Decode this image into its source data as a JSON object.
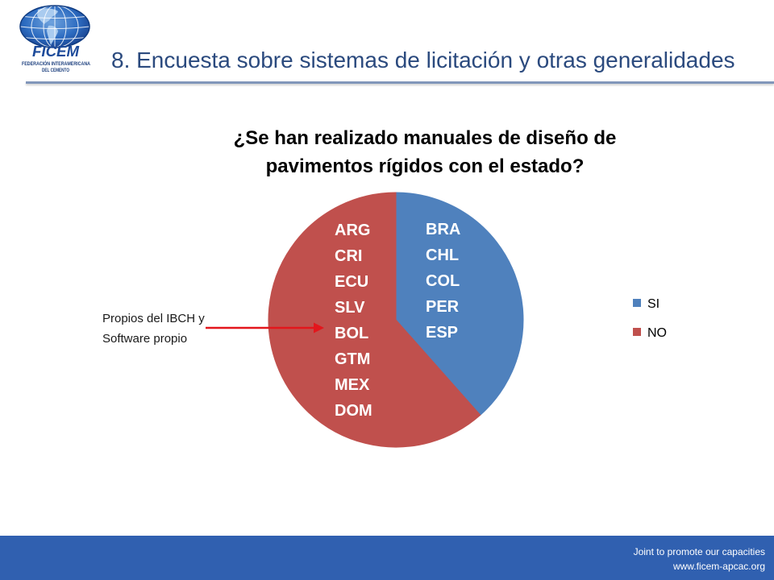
{
  "logo": {
    "name": "FICEM",
    "line1": "FEDERACIÓN INTERAMERICANA",
    "line2": "DEL CEMENTO"
  },
  "slide": {
    "title": "8. Encuesta sobre sistemas de licitación y otras generalidades"
  },
  "footer": {
    "tagline": "Joint to promote our capacities",
    "url": "www.ficem-apcac.org"
  },
  "theme": {
    "title_color": "#2B4A7E",
    "footer_color": "#3060B0"
  },
  "chart_data": {
    "type": "pie",
    "title": "¿Se han realizado manuales de diseño de pavimentos rígidos con el estado?",
    "categories": [
      "SI",
      "NO"
    ],
    "values": [
      5,
      8
    ],
    "colors": [
      "#4F81BD",
      "#C0504D"
    ],
    "data_labels": [
      [
        "BRA",
        "CHL",
        "COL",
        "PER",
        "ESP"
      ],
      [
        "ARG",
        "CRI",
        "ECU",
        "SLV",
        "BOL",
        "GTM",
        "MEX",
        "DOM"
      ]
    ],
    "legend_position": "right",
    "annotations": [
      {
        "text": [
          "Propios del IBCH y",
          "Software propio"
        ],
        "color": "#E3161C"
      }
    ]
  }
}
